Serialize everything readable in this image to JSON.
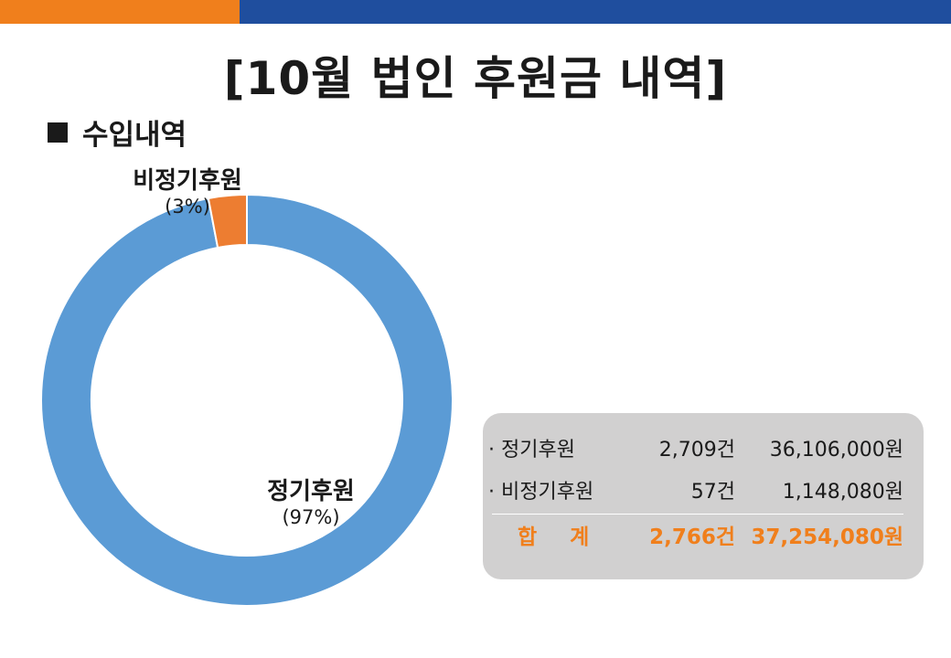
{
  "header": {
    "left_color": "#f07f1c",
    "right_color": "#1f4e9e"
  },
  "title": "[10월 법인 후원금 내역]",
  "section": {
    "label": "수입내역"
  },
  "chart_data": {
    "type": "pie",
    "donut": true,
    "categories": [
      "정기후원",
      "비정기후원"
    ],
    "values": [
      97,
      3
    ],
    "labels": [
      {
        "name": "정기후원",
        "percent": "(97%)"
      },
      {
        "name": "비정기후원",
        "percent": "(3%)"
      }
    ],
    "colors": [
      "#5b9bd5",
      "#ed7d31"
    ]
  },
  "summary": {
    "rows": [
      {
        "label": "· 정기후원",
        "count": "2,709건",
        "amount": "36,106,000원"
      },
      {
        "label": "· 비정기후원",
        "count": "57건",
        "amount": "1,148,080원"
      }
    ],
    "total": {
      "label": "합 계",
      "count": "2,766건",
      "amount": "37,254,080원"
    }
  }
}
